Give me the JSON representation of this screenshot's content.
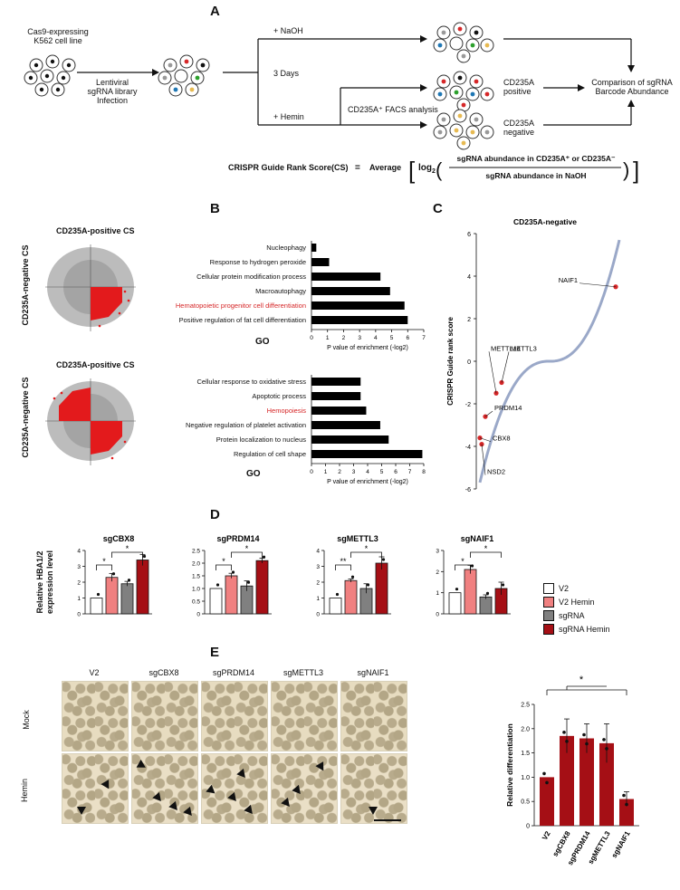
{
  "panels": {
    "A": "A",
    "B": "B",
    "C": "C",
    "D": "D",
    "E": "E"
  },
  "panelA": {
    "cell_line": [
      "Cas9-expressing",
      "K562 cell line"
    ],
    "infection": [
      "Lentiviral",
      "sgRNA library",
      "Infection"
    ],
    "naoh": "+ NaOH",
    "days": "3 Days",
    "hemin": "+ Hemin",
    "facs": "CD235A⁺ FACS analysis",
    "positive": [
      "CD235A",
      "positive"
    ],
    "negative": [
      "CD235A",
      "negative"
    ],
    "comparison": [
      "Comparison of sgRNA",
      "Barcode Abundance"
    ],
    "formula_label": "CRISPR Guide Rank Score(CS)",
    "equals": "=",
    "average": "Average",
    "log": "log",
    "log_sub": "2",
    "numerator": "sgRNA abundance in CD235A⁺ or CD235A⁻",
    "denominator": "sgRNA abundance in NaOH"
  },
  "panelB": {
    "scatter_title": "CD235A-positive CS",
    "scatter_ylabel": "CD235A-negative CS",
    "go_label": "GO",
    "colors": {
      "highlight": "#d62728",
      "bar": "#000000",
      "scatter": "#b0b0b0"
    }
  },
  "panelC": {
    "title": "CD235A-negative",
    "ylabel": "CRISPR Guide rank score",
    "genes": [
      "NAIF1",
      "METTL14",
      "METTL3",
      "PRDM14",
      "CBX8",
      "NSD2"
    ]
  },
  "panelD": {
    "ylabel": [
      "Relative HBA1/2",
      "expression level"
    ],
    "legend": [
      "V2",
      "V2 Hemin",
      "sgRNA",
      "sgRNA Hemin"
    ],
    "colors": [
      "#ffffff",
      "#f08080",
      "#808080",
      "#a50f15"
    ]
  },
  "panelE": {
    "columns": [
      "V2",
      "sgCBX8",
      "sgPRDM14",
      "sgMETTL3",
      "sgNAIF1"
    ],
    "rows": [
      "Mock",
      "Hemin"
    ],
    "colors": {
      "bar": "#a50f15"
    }
  },
  "chart_data": [
    {
      "type": "bar",
      "id": "B-top",
      "categories": [
        "Nucleophagy",
        "Response to hydrogen peroxide",
        "Cellular protein modification process",
        "Macroautophagy",
        "Hematopoietic progenitor cell differentiation",
        "Positive regulation of fat cell differentiation"
      ],
      "highlight": [
        "Hematopoietic progenitor cell differentiation"
      ],
      "values": [
        0.3,
        1.1,
        4.3,
        4.9,
        5.8,
        6.0
      ],
      "xlabel": "P value of enrichment (-log2)",
      "xlim": [
        0,
        7
      ],
      "xticks": [
        "0",
        "1",
        "2",
        "3",
        "4",
        "5",
        "6",
        "7"
      ],
      "orientation": "horizontal"
    },
    {
      "type": "bar",
      "id": "B-bottom",
      "categories": [
        "Cellular response to oxidative stress",
        "Apoptotic process",
        "Hemopoiesis",
        "Negative regulation of platelet activation",
        "Protein localization to nucleus",
        "Regulation of cell shape"
      ],
      "highlight": [
        "Hemopoiesis"
      ],
      "values": [
        3.5,
        3.5,
        3.9,
        4.9,
        5.5,
        7.9
      ],
      "xlabel": "P value of enrichment (-log2)",
      "xlim": [
        0,
        8
      ],
      "xticks": [
        "0",
        "1",
        "2",
        "3",
        "4",
        "5",
        "6",
        "7",
        "8"
      ],
      "orientation": "horizontal"
    },
    {
      "type": "line",
      "id": "C",
      "title": "CD235A-negative",
      "ylabel": "CRISPR Guide rank score",
      "ylim": [
        -6,
        6
      ],
      "yticks": [
        "-6",
        "-4",
        "-2",
        "0",
        "2",
        "4",
        "6"
      ],
      "labeled_points": [
        {
          "name": "NAIF1",
          "y": 3.5
        },
        {
          "name": "METTL14",
          "y": -1.5
        },
        {
          "name": "METTL3",
          "y": -1.0
        },
        {
          "name": "PRDM14",
          "y": -2.6
        },
        {
          "name": "CBX8",
          "y": -3.6
        },
        {
          "name": "NSD2",
          "y": -3.9
        }
      ]
    },
    {
      "type": "bar",
      "id": "D1",
      "title": "sgCBX8",
      "categories": [
        "V2",
        "V2 Hemin",
        "sgRNA",
        "sgRNA Hemin"
      ],
      "values": [
        1.0,
        2.3,
        1.9,
        3.4
      ],
      "errors": [
        0,
        0.25,
        0.15,
        0.35
      ],
      "ylim": [
        0,
        4
      ],
      "yticks": [
        "0",
        "1",
        "2",
        "3",
        "4"
      ],
      "significance": [
        {
          "pair": [
            0,
            1
          ],
          "label": "*"
        },
        {
          "pair": [
            1,
            3
          ],
          "label": "*"
        }
      ]
    },
    {
      "type": "bar",
      "id": "D2",
      "title": "sgPRDM14",
      "categories": [
        "V2",
        "V2 Hemin",
        "sgRNA",
        "sgRNA Hemin"
      ],
      "values": [
        1.0,
        1.5,
        1.1,
        2.1
      ],
      "errors": [
        0,
        0.1,
        0.2,
        0.1
      ],
      "ylim": [
        0,
        2.5
      ],
      "yticks": [
        "0",
        "0.5",
        "1.0",
        "1.5",
        "2.0",
        "2.5"
      ],
      "significance": [
        {
          "pair": [
            0,
            1
          ],
          "label": "*"
        },
        {
          "pair": [
            1,
            3
          ],
          "label": "*"
        }
      ]
    },
    {
      "type": "bar",
      "id": "D3",
      "title": "sgMETTL3",
      "categories": [
        "V2",
        "V2 Hemin",
        "sgRNA",
        "sgRNA Hemin"
      ],
      "values": [
        1.0,
        2.1,
        1.6,
        3.2
      ],
      "errors": [
        0,
        0.1,
        0.3,
        0.4
      ],
      "ylim": [
        0,
        4
      ],
      "yticks": [
        "0",
        "1",
        "2",
        "3",
        "4"
      ],
      "significance": [
        {
          "pair": [
            0,
            1
          ],
          "label": "**"
        },
        {
          "pair": [
            1,
            3
          ],
          "label": "*"
        }
      ]
    },
    {
      "type": "bar",
      "id": "D4",
      "title": "sgNAIF1",
      "categories": [
        "V2",
        "V2 Hemin",
        "sgRNA",
        "sgRNA Hemin"
      ],
      "values": [
        1.0,
        2.1,
        0.8,
        1.2
      ],
      "errors": [
        0,
        0.2,
        0.1,
        0.3
      ],
      "ylim": [
        0,
        3
      ],
      "yticks": [
        "0",
        "1",
        "2",
        "3"
      ],
      "significance": [
        {
          "pair": [
            0,
            1
          ],
          "label": "*"
        },
        {
          "pair": [
            1,
            3
          ],
          "label": "*"
        }
      ]
    },
    {
      "type": "bar",
      "id": "E",
      "ylabel": "Relative differentiation",
      "categories": [
        "V2",
        "sgCBX8",
        "sgPRDM14",
        "sgMETTL3",
        "sgNAIF1"
      ],
      "values": [
        1.0,
        1.85,
        1.8,
        1.7,
        0.55
      ],
      "errors": [
        0,
        0.35,
        0.3,
        0.4,
        0.15
      ],
      "ylim": [
        0,
        2.5
      ],
      "yticks": [
        "0",
        "0.5",
        "1.0",
        "1.5",
        "2.0",
        "2.5"
      ],
      "significance": [
        {
          "label": "*"
        }
      ]
    }
  ]
}
